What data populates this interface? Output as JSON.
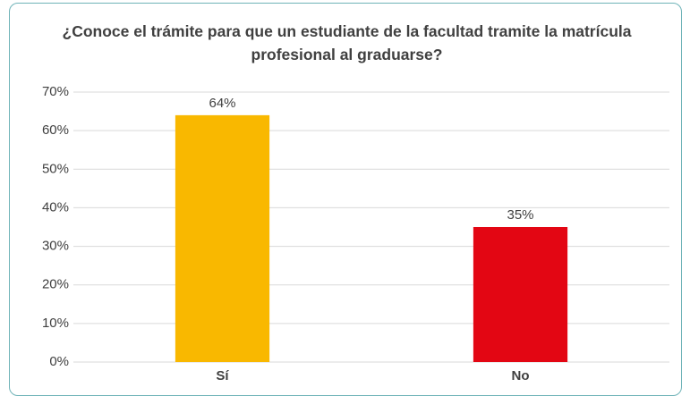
{
  "chart_data": {
    "type": "bar",
    "title": "¿Conoce el trámite para que un estudiante de la facultad tramite la matrícula profesional al graduarse?",
    "categories": [
      "Sí",
      "No"
    ],
    "values": [
      64,
      35
    ],
    "value_labels": [
      "64%",
      "35%"
    ],
    "colors": [
      "#f9b800",
      "#e30613"
    ],
    "ylim": [
      0,
      70
    ],
    "yticks": [
      {
        "value": 0,
        "label": "0%"
      },
      {
        "value": 10,
        "label": "10%"
      },
      {
        "value": 20,
        "label": "20%"
      },
      {
        "value": 30,
        "label": "30%"
      },
      {
        "value": 40,
        "label": "40%"
      },
      {
        "value": 50,
        "label": "50%"
      },
      {
        "value": 60,
        "label": "60%"
      },
      {
        "value": 70,
        "label": "70%"
      }
    ],
    "grid": true
  }
}
